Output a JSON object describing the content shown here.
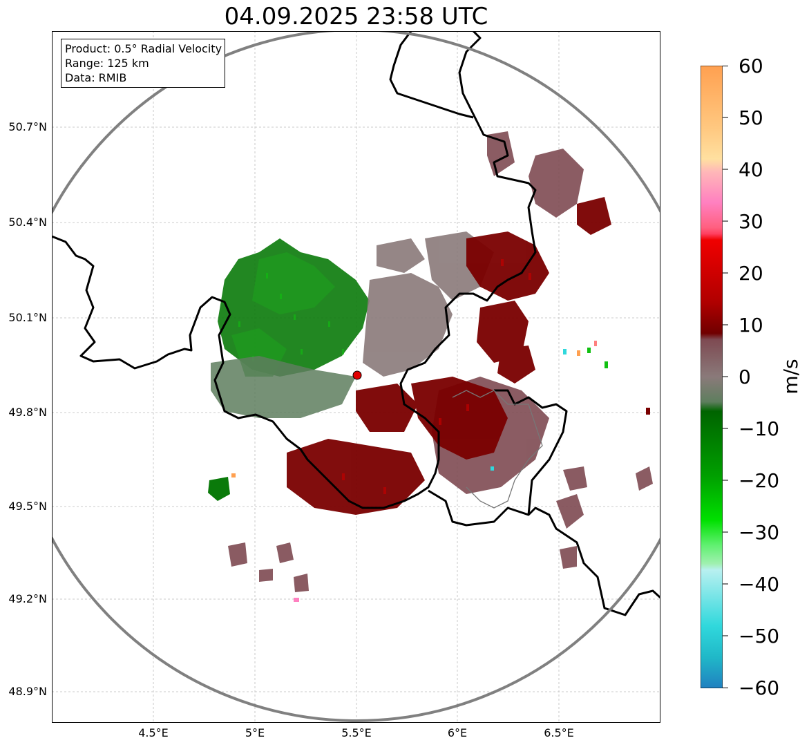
{
  "title": "04.09.2025 23:58 UTC",
  "info": {
    "product": "Product: 0.5° Radial Velocity",
    "range": "Range: 125 km",
    "data": "Data: RMIB"
  },
  "axes": {
    "lon_ticks": [
      "4.5°E",
      "5°E",
      "5.5°E",
      "6°E",
      "6.5°E"
    ],
    "lat_ticks": [
      "50.7°N",
      "50.4°N",
      "50.1°N",
      "49.8°N",
      "49.5°N",
      "49.2°N",
      "48.9°N"
    ]
  },
  "radar_site": {
    "lon": 5.505,
    "lat": 49.914
  },
  "colorbar": {
    "unit": "m/s",
    "ticks": [
      "60",
      "50",
      "40",
      "30",
      "20",
      "10",
      "0",
      "−10",
      "−20",
      "−30",
      "−40",
      "−50",
      "−60"
    ],
    "range": [
      -60,
      60
    ],
    "colors": {
      "inbound_dark_green": "#006400",
      "inbound_green": "#00cc00",
      "near_zero_gray": "#8a7a7a",
      "outbound_dark_red": "#7a0000",
      "outbound_red": "#e00000",
      "outbound_pink": "#ff80c0",
      "outbound_orange": "#ffa050",
      "inbound_cyan": "#30d8dc",
      "inbound_blue": "#2080c0"
    }
  }
}
